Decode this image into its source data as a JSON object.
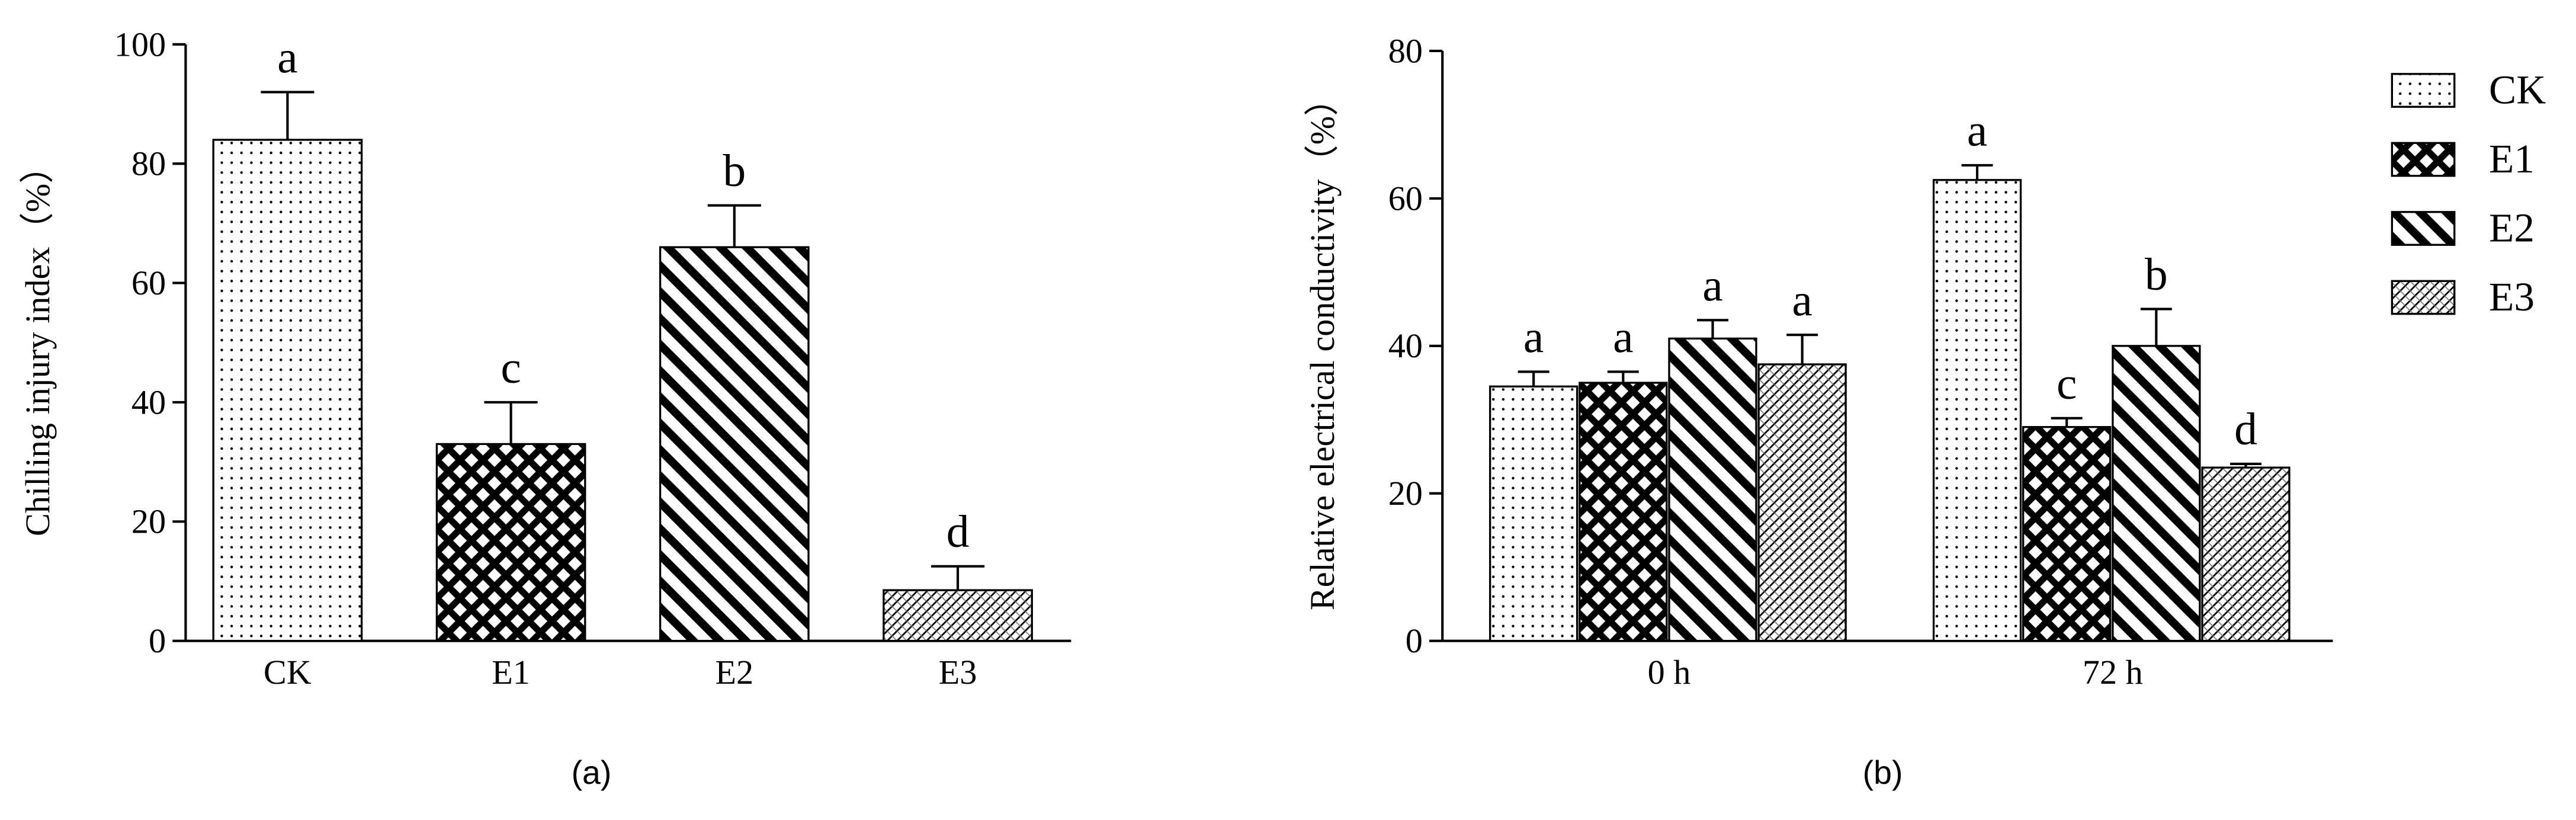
{
  "chart_data": [
    {
      "type": "bar",
      "y_label": "Chilling injury index（%）",
      "caption": "(a)",
      "categories": [
        "CK",
        "E1",
        "E2",
        "E3"
      ],
      "values": [
        84,
        33,
        66,
        8.5
      ],
      "errors": [
        8,
        7,
        7,
        4
      ],
      "significance": [
        "a",
        "c",
        "b",
        "d"
      ],
      "patterns": [
        "dots",
        "cross",
        "stripes",
        "hatch"
      ],
      "ylim": [
        0,
        100
      ],
      "yticks": [
        0,
        20,
        40,
        60,
        80,
        100
      ]
    },
    {
      "type": "grouped_bar",
      "y_label": "Relative electrical conductivity（%）",
      "caption": "(b)",
      "categories": [
        "0 h",
        "72 h"
      ],
      "series": [
        {
          "name": "CK",
          "pattern": "dots",
          "values": [
            34.5,
            62.5
          ],
          "errors": [
            2,
            2
          ],
          "significance": [
            "a",
            "a"
          ]
        },
        {
          "name": "E1",
          "pattern": "cross",
          "values": [
            35,
            29
          ],
          "errors": [
            1.5,
            1.2
          ],
          "significance": [
            "a",
            "c"
          ]
        },
        {
          "name": "E2",
          "pattern": "stripes",
          "values": [
            41,
            40
          ],
          "errors": [
            2.5,
            5
          ],
          "significance": [
            "a",
            "b"
          ]
        },
        {
          "name": "E3",
          "pattern": "hatch",
          "values": [
            37.5,
            23.5
          ],
          "errors": [
            4,
            0.5
          ],
          "significance": [
            "a",
            "d"
          ]
        }
      ],
      "ylim": [
        0,
        80
      ],
      "yticks": [
        0,
        20,
        40,
        60,
        80
      ],
      "legend": "right"
    }
  ]
}
